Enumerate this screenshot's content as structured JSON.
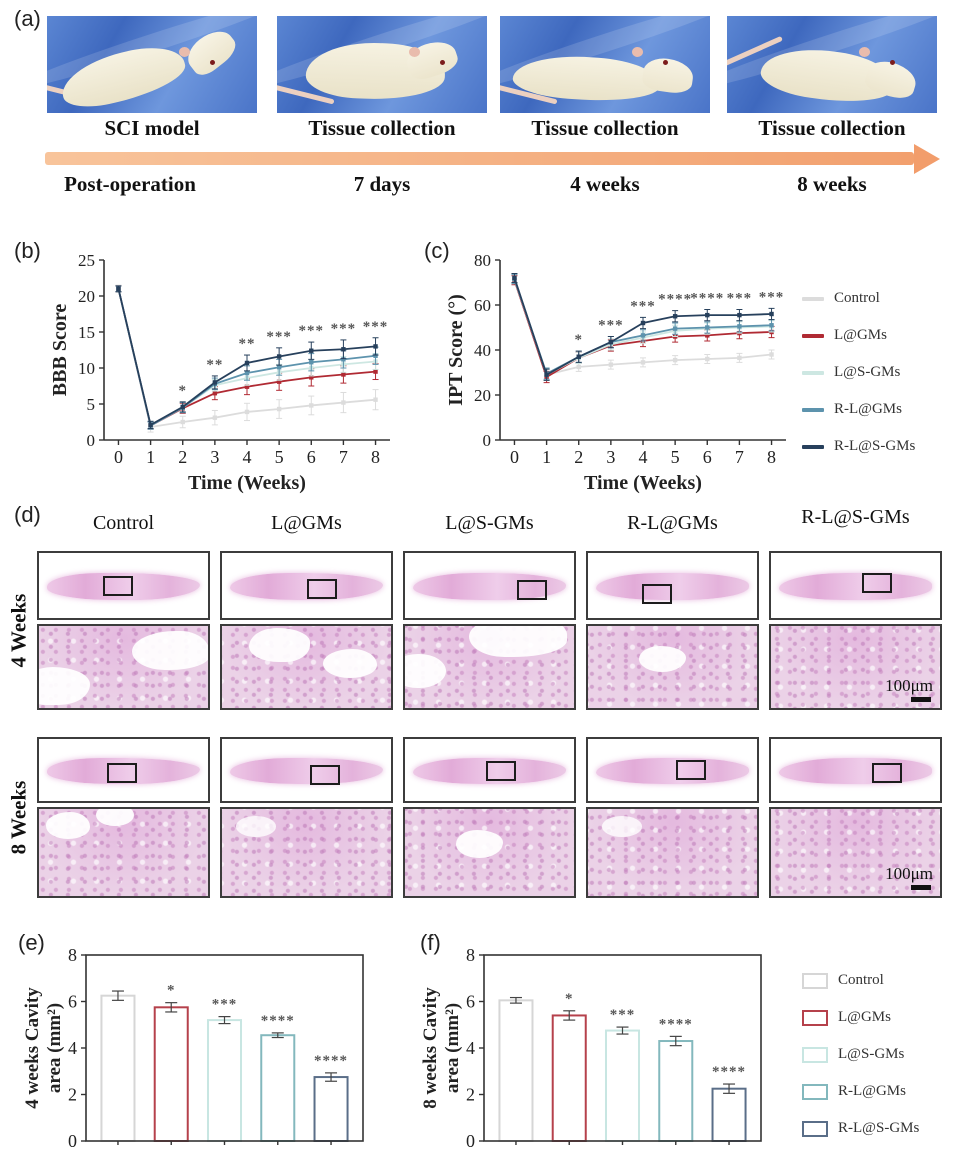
{
  "panels": {
    "a": {
      "label": "(a)",
      "stages": [
        {
          "caption": "SCI model",
          "time": "Post-operation"
        },
        {
          "caption": "Tissue collection",
          "time": "7 days"
        },
        {
          "caption": "Tissue collection",
          "time": "4 weeks"
        },
        {
          "caption": "Tissue collection",
          "time": "8 weeks"
        }
      ]
    },
    "b": {
      "label": "(b)"
    },
    "c": {
      "label": "(c)"
    },
    "d": {
      "label": "(d)",
      "columns": [
        "Control",
        "L@GMs",
        "L@S-GMs",
        "R-L@GMs",
        "R-L@S-GMs"
      ],
      "blocks": [
        {
          "row_label": "4 Weeks",
          "scale_bar": "100μm"
        },
        {
          "row_label": "8 Weeks",
          "scale_bar": "100μm"
        }
      ]
    },
    "e": {
      "label": "(e)"
    },
    "f": {
      "label": "(f)"
    }
  },
  "legends": {
    "line": [
      {
        "label": "Control",
        "color": "#dcdcdc"
      },
      {
        "label": "L@GMs",
        "color": "#b02a33"
      },
      {
        "label": "L@S-GMs",
        "color": "#cde7e2"
      },
      {
        "label": "R-L@GMs",
        "color": "#5d93ad"
      },
      {
        "label": "R-L@S-GMs",
        "color": "#27405c"
      }
    ],
    "bar": [
      {
        "label": "Control",
        "color": "#d6d6d6"
      },
      {
        "label": "L@GMs",
        "color": "#b5414b"
      },
      {
        "label": "L@S-GMs",
        "color": "#c8e6e2"
      },
      {
        "label": "R-L@GMs",
        "color": "#83b8bd"
      },
      {
        "label": "R-L@S-GMs",
        "color": "#5a6e88"
      }
    ]
  },
  "colors": {
    "axis": "#333333",
    "significance": "#555555",
    "arrow": "#f29d6b",
    "scale_bar": "#111111"
  },
  "chart_data": [
    {
      "id": "bbb",
      "type": "line",
      "title": "",
      "xlabel": "Time (Weeks)",
      "ylabel": "BBB Score",
      "x": [
        0,
        1,
        2,
        3,
        4,
        5,
        6,
        7,
        8
      ],
      "xlim": [
        -0.45,
        8.45
      ],
      "ylim": [
        0,
        25
      ],
      "yticks": [
        0,
        5,
        10,
        15,
        20,
        25
      ],
      "grid": false,
      "legend_position": "right-outside",
      "series": [
        {
          "name": "Control",
          "color": "#dcdcdc",
          "values": [
            21,
            1.8,
            2.5,
            3.1,
            3.9,
            4.3,
            4.8,
            5.2,
            5.6
          ],
          "errors": [
            0.5,
            0.7,
            0.8,
            1.0,
            1.2,
            1.3,
            1.3,
            1.4,
            1.4
          ]
        },
        {
          "name": "L@GMs",
          "color": "#b02a33",
          "values": [
            21,
            2.0,
            4.4,
            6.5,
            7.4,
            8.1,
            8.7,
            9.1,
            9.5
          ],
          "errors": [
            0.4,
            0.5,
            0.7,
            0.9,
            1.1,
            1.2,
            1.2,
            1.2,
            1.1
          ]
        },
        {
          "name": "L@S-GMs",
          "color": "#cde7e2",
          "values": [
            21,
            2.0,
            4.5,
            7.6,
            8.6,
            9.4,
            10.0,
            10.5,
            10.9
          ],
          "errors": [
            0.4,
            0.5,
            0.7,
            0.8,
            1.0,
            1.1,
            1.1,
            1.1,
            1.1
          ]
        },
        {
          "name": "R-L@GMs",
          "color": "#5d93ad",
          "values": [
            21,
            2.0,
            4.5,
            7.8,
            9.3,
            10.1,
            10.8,
            11.2,
            11.7
          ],
          "errors": [
            0.4,
            0.5,
            0.7,
            0.8,
            1.0,
            1.1,
            1.2,
            1.2,
            1.2
          ]
        },
        {
          "name": "R-L@S-GMs",
          "color": "#27405c",
          "values": [
            21,
            2.1,
            4.6,
            8.0,
            10.7,
            11.6,
            12.4,
            12.6,
            13.0
          ],
          "errors": [
            0.4,
            0.5,
            0.7,
            0.9,
            1.1,
            1.2,
            1.2,
            1.3,
            1.2
          ]
        }
      ],
      "significance": [
        {
          "x": 2,
          "label": "*"
        },
        {
          "x": 3,
          "label": "**"
        },
        {
          "x": 4,
          "label": "**"
        },
        {
          "x": 5,
          "label": "***"
        },
        {
          "x": 6,
          "label": "***"
        },
        {
          "x": 7,
          "label": "***"
        },
        {
          "x": 8,
          "label": "***"
        }
      ]
    },
    {
      "id": "ipt",
      "type": "line",
      "title": "",
      "xlabel": "Time (Weeks)",
      "ylabel": "IPT Score (°)",
      "x": [
        0,
        1,
        2,
        3,
        4,
        5,
        6,
        7,
        8
      ],
      "xlim": [
        -0.45,
        8.45
      ],
      "ylim": [
        0,
        80
      ],
      "yticks": [
        0,
        20,
        40,
        60,
        80
      ],
      "grid": false,
      "legend_position": "right-outside",
      "series": [
        {
          "name": "Control",
          "color": "#dcdcdc",
          "values": [
            72,
            29,
            32.5,
            33.5,
            34.5,
            35.5,
            36,
            36.5,
            38
          ],
          "errors": [
            2,
            2.5,
            2,
            2,
            2,
            2,
            2,
            2,
            2
          ]
        },
        {
          "name": "L@GMs",
          "color": "#b02a33",
          "values": [
            71,
            28,
            36.5,
            42,
            44,
            46,
            46.5,
            47.5,
            48
          ],
          "errors": [
            2,
            2.5,
            2.5,
            2.5,
            2.5,
            2.5,
            2.5,
            2.5,
            2.5
          ]
        },
        {
          "name": "L@S-GMs",
          "color": "#cde7e2",
          "values": [
            71.5,
            29,
            36.5,
            42.5,
            45.5,
            48.5,
            49.5,
            50,
            50.5
          ],
          "errors": [
            2,
            2.5,
            2.5,
            2.5,
            2.5,
            2.5,
            2.5,
            2.5,
            2.5
          ]
        },
        {
          "name": "R-L@GMs",
          "color": "#5d93ad",
          "values": [
            71.5,
            29.5,
            37,
            43.5,
            46.5,
            49.5,
            50,
            50.5,
            51
          ],
          "errors": [
            2,
            2.5,
            2.5,
            2.5,
            2.5,
            2.5,
            2.5,
            2.5,
            2.5
          ]
        },
        {
          "name": "R-L@S-GMs",
          "color": "#27405c",
          "values": [
            72,
            29,
            37,
            43.5,
            52,
            55,
            55.5,
            55.5,
            56
          ],
          "errors": [
            2,
            2.5,
            2.5,
            2.5,
            2.5,
            2.5,
            2.5,
            2.5,
            2.5
          ]
        }
      ],
      "significance": [
        {
          "x": 2,
          "label": "*"
        },
        {
          "x": 3,
          "label": "***"
        },
        {
          "x": 4,
          "label": "***"
        },
        {
          "x": 5,
          "label": "****"
        },
        {
          "x": 6,
          "label": "****"
        },
        {
          "x": 7,
          "label": "***"
        },
        {
          "x": 8,
          "label": "***"
        }
      ]
    },
    {
      "id": "cavity4",
      "type": "bar",
      "title": "",
      "ylabel_lines": [
        "4 weeks Cavity",
        "area (mm²)"
      ],
      "categories": [
        "Control",
        "L@GMs",
        "L@S-GMs",
        "R-L@GMs",
        "R-L@S-GMs"
      ],
      "values": [
        6.25,
        5.75,
        5.2,
        4.55,
        2.75
      ],
      "errors": [
        0.2,
        0.2,
        0.15,
        0.1,
        0.18
      ],
      "sig": [
        "",
        "*",
        "***",
        "****",
        "****"
      ],
      "bar_colors": [
        "#d6d6d6",
        "#b5414b",
        "#c8e6e2",
        "#83b8bd",
        "#5a6e88"
      ],
      "ylim": [
        0,
        8
      ],
      "yticks": [
        0,
        2,
        4,
        6,
        8
      ],
      "grid": false
    },
    {
      "id": "cavity8",
      "type": "bar",
      "title": "",
      "ylabel_lines": [
        "8 weeks Cavity",
        "area (mm²)"
      ],
      "categories": [
        "Control",
        "L@GMs",
        "L@S-GMs",
        "R-L@GMs",
        "R-L@S-GMs"
      ],
      "values": [
        6.05,
        5.4,
        4.75,
        4.3,
        2.25
      ],
      "errors": [
        0.12,
        0.2,
        0.15,
        0.2,
        0.2
      ],
      "sig": [
        "",
        "*",
        "***",
        "****",
        "****"
      ],
      "bar_colors": [
        "#d6d6d6",
        "#b5414b",
        "#c8e6e2",
        "#83b8bd",
        "#5a6e88"
      ],
      "ylim": [
        0,
        8
      ],
      "yticks": [
        0,
        2,
        4,
        6,
        8
      ],
      "grid": false
    }
  ]
}
